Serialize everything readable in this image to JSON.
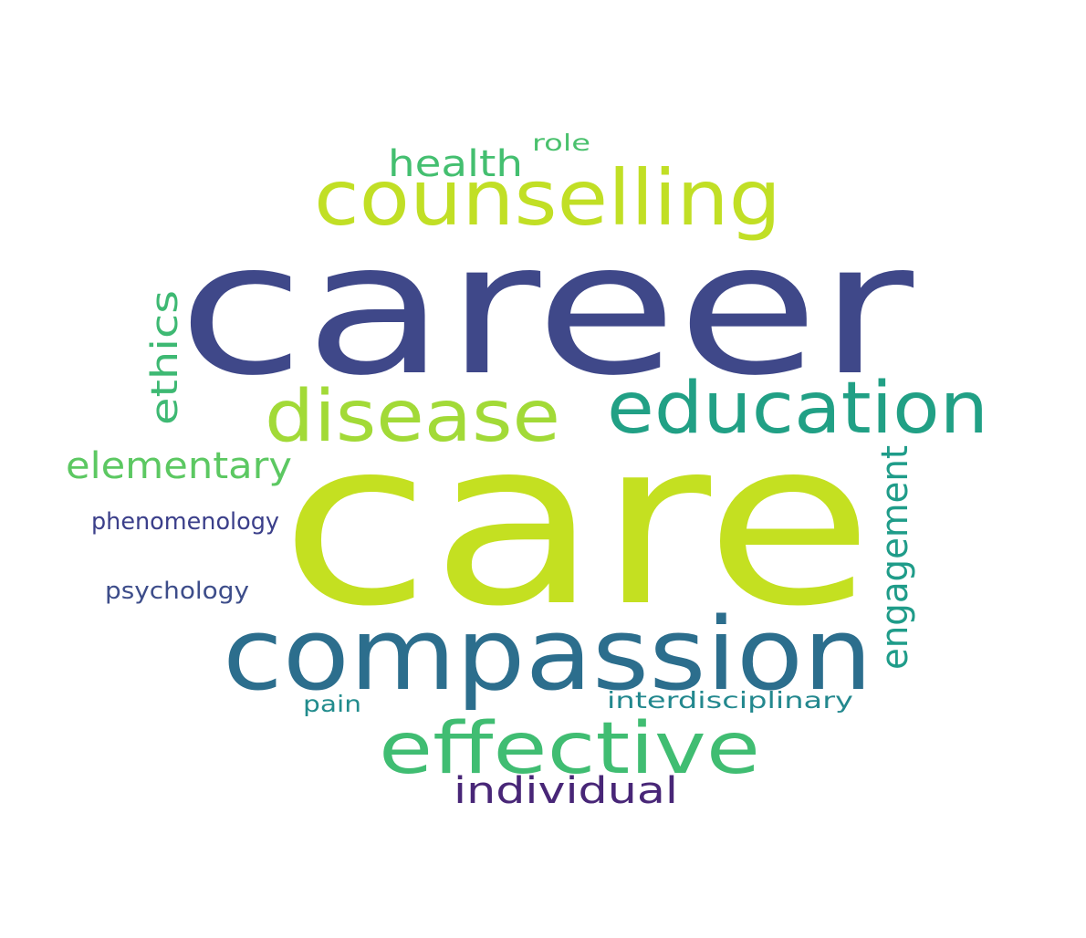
{
  "words": {
    "career": {
      "text": "career",
      "color": "#3f4889"
    },
    "care": {
      "text": "care",
      "color": "#c4e021"
    },
    "compassion": {
      "text": "compassion",
      "color": "#2c6e8d"
    },
    "counselling": {
      "text": "counselling",
      "color": "#c1df25"
    },
    "education": {
      "text": "education",
      "color": "#21a085"
    },
    "disease": {
      "text": "disease",
      "color": "#a2da37"
    },
    "effective": {
      "text": "effective",
      "color": "#40bd72"
    },
    "engagement": {
      "text": "engagement",
      "color": "#1f9c89"
    },
    "ethics": {
      "text": "ethics",
      "color": "#3eb973"
    },
    "health": {
      "text": "health",
      "color": "#44bf70"
    },
    "elementary": {
      "text": "elementary",
      "color": "#5cc862"
    },
    "individual": {
      "text": "individual",
      "color": "#482677"
    },
    "phenomenology": {
      "text": "phenomenology",
      "color": "#3b3f8a"
    },
    "psychology": {
      "text": "psychology",
      "color": "#3d4d8a"
    },
    "interdisciplinary": {
      "text": "interdisciplinary",
      "color": "#23888e"
    },
    "pain": {
      "text": "pain",
      "color": "#228c8d"
    },
    "role": {
      "text": "role",
      "color": "#4ac16d"
    }
  }
}
